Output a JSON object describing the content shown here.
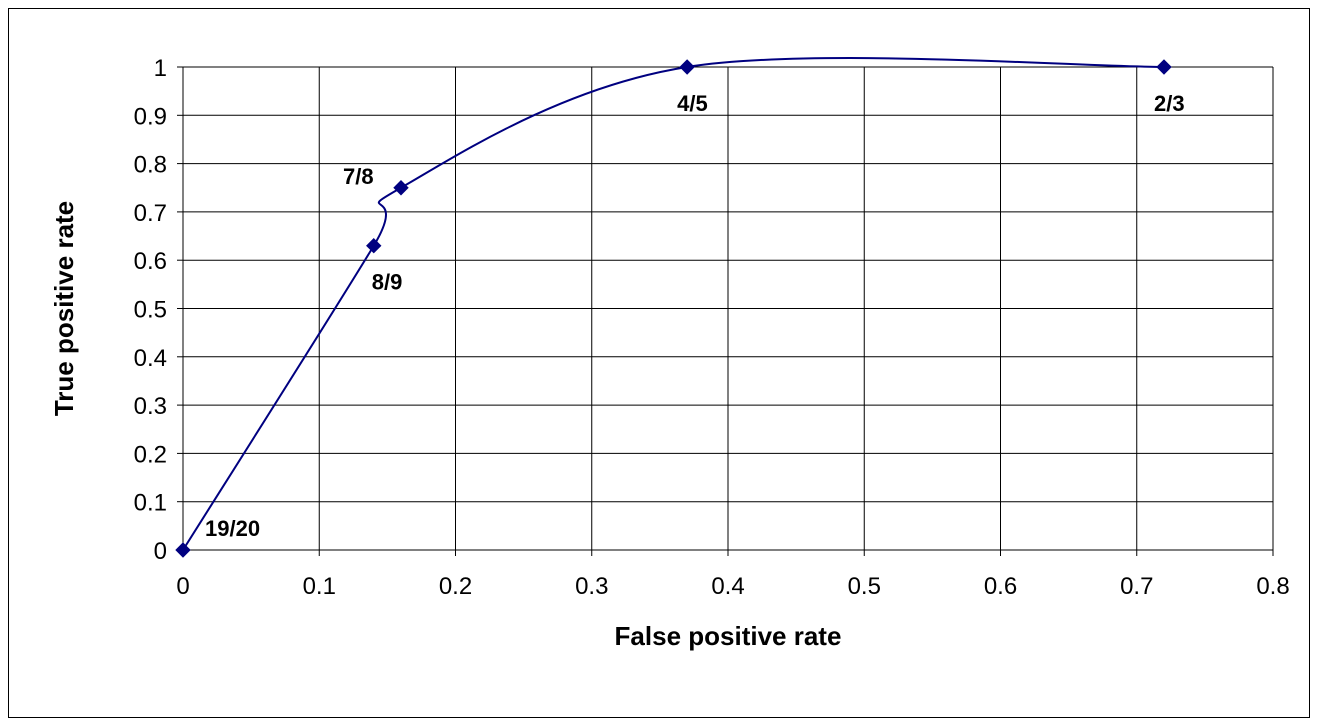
{
  "chart_data": {
    "type": "line",
    "title": "",
    "xlabel": "False positive rate",
    "ylabel": "True positive rate",
    "xlim": [
      0,
      0.8
    ],
    "ylim": [
      0,
      1
    ],
    "x_ticks": [
      0,
      0.1,
      0.2,
      0.3,
      0.4,
      0.5,
      0.6,
      0.7,
      0.8
    ],
    "x_tick_labels": [
      "0",
      "0.1",
      "0.2",
      "0.3",
      "0.4",
      "0.5",
      "0.6",
      "0.7",
      "0.8"
    ],
    "y_ticks": [
      0,
      0.1,
      0.2,
      0.3,
      0.4,
      0.5,
      0.6,
      0.7,
      0.8,
      0.9,
      1
    ],
    "y_tick_labels": [
      "0",
      "0.1",
      "0.2",
      "0.3",
      "0.4",
      "0.5",
      "0.6",
      "0.7",
      "0.8",
      "0.9",
      "1"
    ],
    "grid": true,
    "smoothed": true,
    "line_color": "#000080",
    "marker": "diamond",
    "series": [
      {
        "points": [
          {
            "x": 0,
            "y": 0,
            "label": "19/20"
          },
          {
            "x": 0.14,
            "y": 0.63,
            "label": "8/9"
          },
          {
            "x": 0.16,
            "y": 0.75,
            "label": "7/8"
          },
          {
            "x": 0.37,
            "y": 1,
            "label": "4/5"
          },
          {
            "x": 0.72,
            "y": 1,
            "label": "2/3"
          }
        ]
      }
    ]
  }
}
